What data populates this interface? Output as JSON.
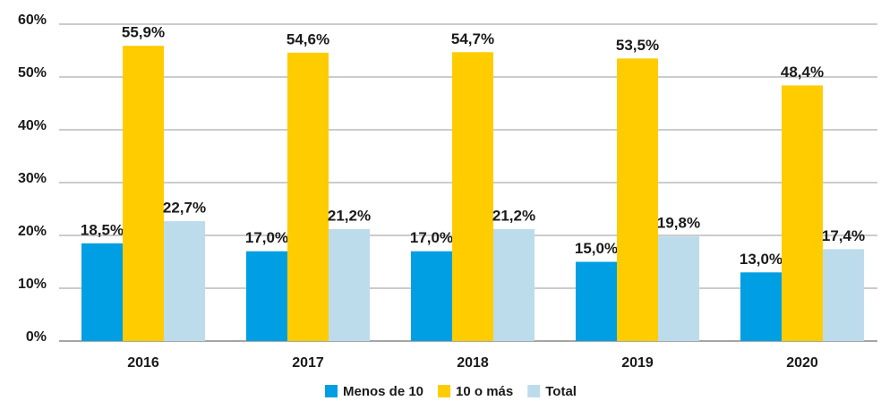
{
  "chart_data": {
    "type": "bar",
    "categories": [
      "2016",
      "2017",
      "2018",
      "2019",
      "2020"
    ],
    "series": [
      {
        "name": "Menos de 10",
        "color": "#009fe3",
        "values": [
          18.5,
          17.0,
          17.0,
          15.0,
          13.0
        ],
        "value_labels": [
          "18,5%",
          "17,0%",
          "17,0%",
          "15,0%",
          "13,0%"
        ]
      },
      {
        "name": "10 o más",
        "color": "#ffcc00",
        "values": [
          55.9,
          54.6,
          54.7,
          53.5,
          48.4
        ],
        "value_labels": [
          "55,9%",
          "54,6%",
          "54,7%",
          "53,5%",
          "48,4%"
        ]
      },
      {
        "name": "Total",
        "color": "#bcdcec",
        "values": [
          22.7,
          21.2,
          21.2,
          19.8,
          17.4
        ],
        "value_labels": [
          "22,7%",
          "21,2%",
          "21,2%",
          "19,8%",
          "17,4%"
        ]
      }
    ],
    "ylim": [
      0,
      60
    ],
    "yticks": [
      {
        "value": 0,
        "label": "0%"
      },
      {
        "value": 10,
        "label": "10%"
      },
      {
        "value": 20,
        "label": "20%"
      },
      {
        "value": 30,
        "label": "30%"
      },
      {
        "value": 40,
        "label": "40%"
      },
      {
        "value": 50,
        "label": "50%"
      },
      {
        "value": 60,
        "label": "60%"
      }
    ],
    "grid": true,
    "legend": "bottom"
  }
}
